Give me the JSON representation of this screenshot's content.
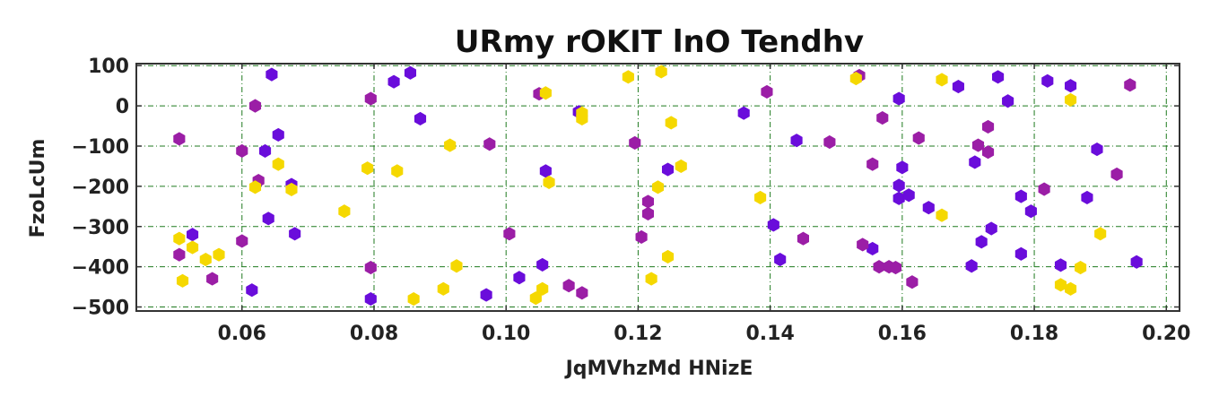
{
  "chart_data": {
    "type": "scatter",
    "title": "URmy rOKIT lnO  Tendhv",
    "xlabel": "JqMVhzMd HNizE",
    "ylabel": "FzoLcUm",
    "xlim": [
      0.044,
      0.202
    ],
    "ylim": [
      -510,
      105
    ],
    "xticks": [
      0.06,
      0.08,
      0.1,
      0.12,
      0.14,
      0.16,
      0.18,
      0.2
    ],
    "xtick_labels": [
      "0.06",
      "0.08",
      "0.10",
      "0.12",
      "0.14",
      "0.16",
      "0.18",
      "0.20"
    ],
    "yticks": [
      100,
      0,
      -100,
      -200,
      -300,
      -400,
      -500
    ],
    "ytick_labels": [
      "100",
      "0",
      "−100",
      "−200",
      "−300",
      "−400",
      "−500"
    ],
    "grid": true,
    "marker": "hexagon",
    "series": [
      {
        "color": "#6a0ddb",
        "points": [
          [
            0.0645,
            78
          ],
          [
            0.0615,
            -458
          ],
          [
            0.0525,
            -320
          ],
          [
            0.0635,
            -112
          ],
          [
            0.0655,
            -72
          ],
          [
            0.0675,
            -196
          ],
          [
            0.064,
            -280
          ],
          [
            0.068,
            -318
          ],
          [
            0.0795,
            -480
          ],
          [
            0.083,
            60
          ],
          [
            0.0855,
            82
          ],
          [
            0.087,
            -32
          ],
          [
            0.097,
            -470
          ],
          [
            0.102,
            -427
          ],
          [
            0.1055,
            -395
          ],
          [
            0.106,
            -162
          ],
          [
            0.111,
            -15
          ],
          [
            0.1245,
            -158
          ],
          [
            0.136,
            -18
          ],
          [
            0.1405,
            -296
          ],
          [
            0.1415,
            -382
          ],
          [
            0.144,
            -86
          ],
          [
            0.1555,
            -355
          ],
          [
            0.1595,
            18
          ],
          [
            0.1595,
            -198
          ],
          [
            0.16,
            -153
          ],
          [
            0.1595,
            -230
          ],
          [
            0.161,
            -222
          ],
          [
            0.164,
            -253
          ],
          [
            0.1685,
            48
          ],
          [
            0.171,
            -140
          ],
          [
            0.1705,
            -398
          ],
          [
            0.172,
            -338
          ],
          [
            0.1735,
            -305
          ],
          [
            0.1745,
            72
          ],
          [
            0.176,
            12
          ],
          [
            0.178,
            -225
          ],
          [
            0.178,
            -368
          ],
          [
            0.1795,
            -262
          ],
          [
            0.182,
            62
          ],
          [
            0.184,
            -396
          ],
          [
            0.1855,
            50
          ],
          [
            0.188,
            -228
          ],
          [
            0.1895,
            -108
          ],
          [
            0.1955,
            -388
          ]
        ]
      },
      {
        "color": "#9b1ea6",
        "points": [
          [
            0.0505,
            -82
          ],
          [
            0.0505,
            -370
          ],
          [
            0.0555,
            -430
          ],
          [
            0.06,
            -112
          ],
          [
            0.06,
            -336
          ],
          [
            0.062,
            0
          ],
          [
            0.0625,
            -186
          ],
          [
            0.0795,
            18
          ],
          [
            0.0795,
            -402
          ],
          [
            0.0975,
            -95
          ],
          [
            0.1005,
            -318
          ],
          [
            0.105,
            30
          ],
          [
            0.1095,
            -447
          ],
          [
            0.1115,
            -465
          ],
          [
            0.1195,
            -92
          ],
          [
            0.1205,
            -326
          ],
          [
            0.1215,
            -238
          ],
          [
            0.1215,
            -268
          ],
          [
            0.1535,
            75
          ],
          [
            0.1395,
            35
          ],
          [
            0.145,
            -330
          ],
          [
            0.149,
            -90
          ],
          [
            0.154,
            -345
          ],
          [
            0.1555,
            -145
          ],
          [
            0.1565,
            -400
          ],
          [
            0.157,
            -30
          ],
          [
            0.158,
            -400
          ],
          [
            0.159,
            -402
          ],
          [
            0.1615,
            -438
          ],
          [
            0.1625,
            -80
          ],
          [
            0.1715,
            -98
          ],
          [
            0.173,
            -115
          ],
          [
            0.173,
            -52
          ],
          [
            0.1815,
            -207
          ],
          [
            0.1925,
            -170
          ],
          [
            0.1945,
            52
          ]
        ]
      },
      {
        "color": "#f5d800",
        "points": [
          [
            0.0505,
            -330
          ],
          [
            0.051,
            -435
          ],
          [
            0.0525,
            -352
          ],
          [
            0.0545,
            -382
          ],
          [
            0.0565,
            -370
          ],
          [
            0.062,
            -202
          ],
          [
            0.0655,
            -145
          ],
          [
            0.0675,
            -208
          ],
          [
            0.0755,
            -262
          ],
          [
            0.079,
            -155
          ],
          [
            0.0835,
            -162
          ],
          [
            0.086,
            -480
          ],
          [
            0.0905,
            -455
          ],
          [
            0.0915,
            -98
          ],
          [
            0.0925,
            -398
          ],
          [
            0.1045,
            -478
          ],
          [
            0.1055,
            -455
          ],
          [
            0.106,
            32
          ],
          [
            0.1065,
            -190
          ],
          [
            0.1115,
            -18
          ],
          [
            0.1115,
            -32
          ],
          [
            0.1185,
            72
          ],
          [
            0.122,
            -430
          ],
          [
            0.123,
            -202
          ],
          [
            0.1235,
            85
          ],
          [
            0.1245,
            -375
          ],
          [
            0.125,
            -42
          ],
          [
            0.1265,
            -150
          ],
          [
            0.1385,
            -228
          ],
          [
            0.153,
            68
          ],
          [
            0.166,
            65
          ],
          [
            0.166,
            -272
          ],
          [
            0.184,
            -445
          ],
          [
            0.1855,
            15
          ],
          [
            0.1855,
            -455
          ],
          [
            0.187,
            -402
          ],
          [
            0.19,
            -318
          ]
        ]
      }
    ]
  }
}
